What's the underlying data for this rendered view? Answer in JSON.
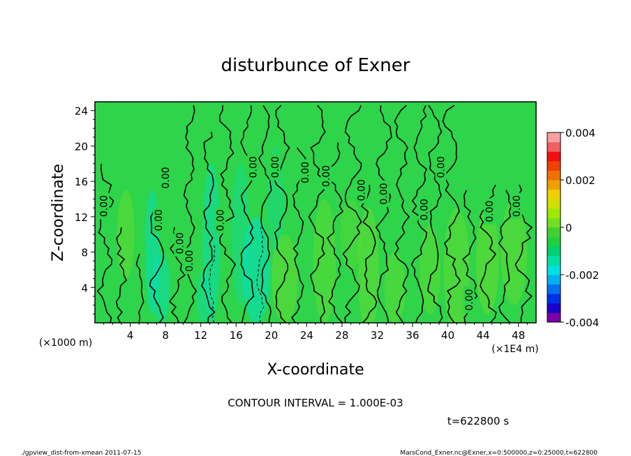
{
  "chart_data": {
    "type": "heatmap",
    "title": "disturbunce of Exner",
    "xlabel": "X-coordinate",
    "ylabel": "Z-coordinate",
    "x_unit": "(×1000 m)",
    "x_unit2": "(×1E4 m)",
    "x_ticks": [
      "4",
      "8",
      "12",
      "16",
      "20",
      "24",
      "28",
      "32",
      "36",
      "40",
      "44",
      "48"
    ],
    "y_ticks": [
      "4",
      "8",
      "12",
      "16",
      "20",
      "24"
    ],
    "xlim": [
      0,
      50
    ],
    "ylim": [
      0,
      25
    ],
    "colorbar": {
      "labels": [
        "0.004",
        "0.002",
        "0",
        "-0.002",
        "-0.004"
      ],
      "range": [
        -0.004,
        0.004
      ],
      "colors": [
        "#7a00a8",
        "#1a00c8",
        "#0030e8",
        "#0070f0",
        "#00b0f0",
        "#00e0e0",
        "#00e0a0",
        "#00d070",
        "#20d040",
        "#40d030",
        "#70e020",
        "#a0e800",
        "#d0e000",
        "#f0d000",
        "#f0a000",
        "#f07000",
        "#f04000",
        "#f01010",
        "#f06060",
        "#f8a0a0"
      ]
    },
    "contour_labels": [
      {
        "text": "0.00",
        "x": 1.0,
        "y": 13.2
      },
      {
        "text": "0.00",
        "x": 7.2,
        "y": 11.6
      },
      {
        "text": "0.00",
        "x": 8.0,
        "y": 16.4
      },
      {
        "text": "0.00",
        "x": 9.6,
        "y": 9.0
      },
      {
        "text": "0.00",
        "x": 10.7,
        "y": 7.0
      },
      {
        "text": "0.00",
        "x": 14.2,
        "y": 11.6
      },
      {
        "text": "0.00",
        "x": 17.9,
        "y": 17.6
      },
      {
        "text": "0.00",
        "x": 20.4,
        "y": 17.6
      },
      {
        "text": "0.00",
        "x": 23.8,
        "y": 17.0
      },
      {
        "text": "0.00",
        "x": 26.2,
        "y": 16.6
      },
      {
        "text": "0.00",
        "x": 30.2,
        "y": 15.0
      },
      {
        "text": "0.00",
        "x": 32.7,
        "y": 14.6
      },
      {
        "text": "0.00",
        "x": 37.3,
        "y": 12.8
      },
      {
        "text": "0.00",
        "x": 39.2,
        "y": 17.6
      },
      {
        "text": "0.00",
        "x": 42.4,
        "y": 2.6
      },
      {
        "text": "0.00",
        "x": 44.7,
        "y": 12.6
      },
      {
        "text": "0.00",
        "x": 47.8,
        "y": 13.2
      }
    ],
    "contour_interval_text": "CONTOUR INTERVAL = 1.000E-03",
    "time_text": "t=622800 s"
  },
  "footer": {
    "left": "./gpview_dist-from-xmean 2011-07-15",
    "right": "MarsCond_Exner.nc@Exner,x=0:500000,z=0:25000,t=622800"
  },
  "colors": {
    "field_base": "#2ed44a",
    "negative": "#00e0c8",
    "positive": "#7ee021",
    "contour": "#000000"
  }
}
